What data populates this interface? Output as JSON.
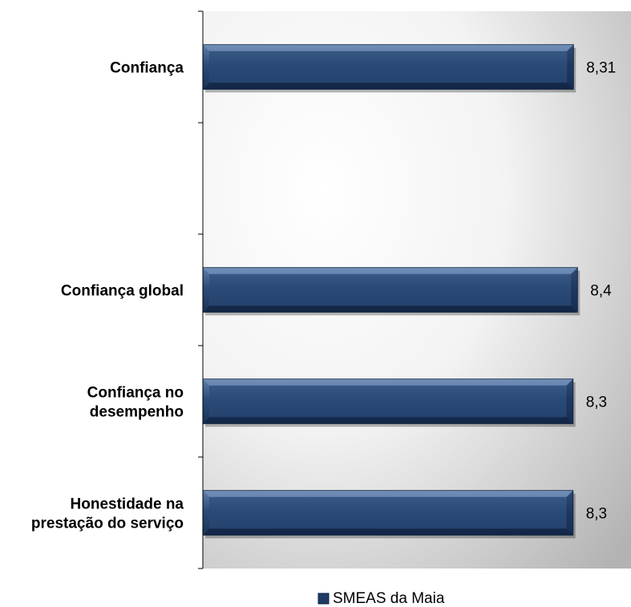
{
  "chart_data": {
    "type": "bar",
    "orientation": "horizontal",
    "rows": [
      {
        "lines": [
          "Confiança"
        ],
        "value": 8.31,
        "value_label": "8,31"
      },
      {
        "lines": [],
        "value": null,
        "value_label": ""
      },
      {
        "lines": [
          "Confiança global"
        ],
        "value": 8.4,
        "value_label": "8,4"
      },
      {
        "lines": [
          "Confiança no",
          "desempenho"
        ],
        "value": 8.3,
        "value_label": "8,3"
      },
      {
        "lines": [
          "Honestidade na",
          "prestação do serviço"
        ],
        "value": 8.3,
        "value_label": "8,3"
      }
    ],
    "series": [
      {
        "name": "SMEAS da Maia",
        "color": "#1f3b64"
      }
    ],
    "xlim": [
      0,
      9.6
    ],
    "grid": false,
    "legend_position": "bottom",
    "colors": {
      "bar": "#1f3b64",
      "bar_light": "#5e7ea8",
      "bar_dark": "#0f2240",
      "plot_bg_light": "#ffffff",
      "plot_bg_dark": "#b3b3b3"
    }
  }
}
